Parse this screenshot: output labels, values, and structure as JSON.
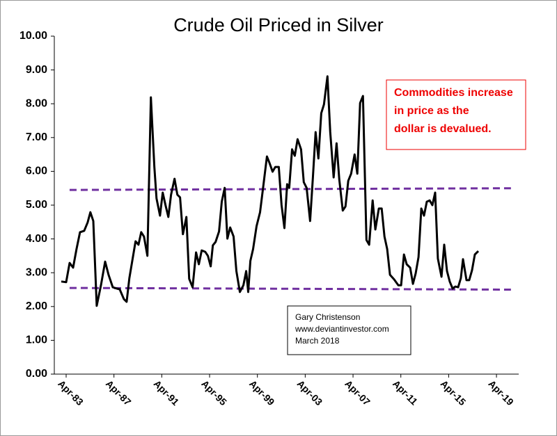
{
  "chart_data": {
    "type": "line",
    "title": "Crude Oil Priced in Silver",
    "annotation": [
      "Commodities increase",
      "in price as the",
      "dollar is devalued."
    ],
    "credit": [
      "Gary Christenson",
      "www.deviantinvestor.com",
      "March 2018"
    ],
    "xlim": [
      1982.26,
      2021.11
    ],
    "ylim": [
      0,
      10
    ],
    "xticks": [
      {
        "value": 1983.25,
        "label": "Apr-83"
      },
      {
        "value": 1987.25,
        "label": "Apr-87"
      },
      {
        "value": 1991.25,
        "label": "Apr-91"
      },
      {
        "value": 1995.25,
        "label": "Apr-95"
      },
      {
        "value": 1999.25,
        "label": "Apr-99"
      },
      {
        "value": 2003.25,
        "label": "Apr-03"
      },
      {
        "value": 2007.25,
        "label": "Apr-07"
      },
      {
        "value": 2011.25,
        "label": "Apr-11"
      },
      {
        "value": 2015.25,
        "label": "Apr-15"
      },
      {
        "value": 2019.25,
        "label": "Apr-19"
      }
    ],
    "yticks": [
      {
        "value": 0,
        "label": "0.00"
      },
      {
        "value": 1,
        "label": "1.00"
      },
      {
        "value": 2,
        "label": "2.00"
      },
      {
        "value": 3,
        "label": "3.00"
      },
      {
        "value": 4,
        "label": "4.00"
      },
      {
        "value": 5,
        "label": "5.00"
      },
      {
        "value": 6,
        "label": "6.00"
      },
      {
        "value": 7,
        "label": "7.00"
      },
      {
        "value": 8,
        "label": "8.00"
      },
      {
        "value": 9,
        "label": "9.00"
      },
      {
        "value": 10,
        "label": "10.00"
      }
    ],
    "color": "#000000",
    "x": [
      1982.84,
      1983.25,
      1983.54,
      1983.83,
      1984.12,
      1984.41,
      1984.76,
      1985.05,
      1985.28,
      1985.52,
      1985.81,
      1986.16,
      1986.51,
      1986.8,
      1987.15,
      1987.49,
      1987.73,
      1988.08,
      1988.31,
      1988.54,
      1989.06,
      1989.3,
      1989.53,
      1989.76,
      1990.05,
      1990.34,
      1990.63,
      1990.81,
      1991.1,
      1991.33,
      1991.56,
      1991.8,
      1992.03,
      1992.32,
      1992.55,
      1992.78,
      1993.02,
      1993.31,
      1993.54,
      1993.83,
      1994.12,
      1994.35,
      1994.59,
      1994.88,
      1995.11,
      1995.34,
      1995.52,
      1995.75,
      1996.04,
      1996.27,
      1996.51,
      1996.74,
      1996.97,
      1997.26,
      1997.49,
      1997.78,
      1998.08,
      1998.31,
      1998.48,
      1998.66,
      1998.89,
      1999.18,
      1999.47,
      1999.76,
      2000.05,
      2000.28,
      2000.52,
      2000.75,
      2001.04,
      2001.27,
      2001.51,
      2001.74,
      2001.91,
      2002.15,
      2002.38,
      2002.61,
      2002.9,
      2003.13,
      2003.37,
      2003.66,
      2003.89,
      2004.12,
      2004.35,
      2004.59,
      2004.82,
      2005.11,
      2005.34,
      2005.63,
      2005.87,
      2006.1,
      2006.39,
      2006.62,
      2006.85,
      2007.09,
      2007.38,
      2007.61,
      2007.84,
      2008.08,
      2008.37,
      2008.6,
      2008.89,
      2009.12,
      2009.41,
      2009.65,
      2009.88,
      2010.11,
      2010.34,
      2010.69,
      2011.04,
      2011.27,
      2011.51,
      2011.74,
      2012.03,
      2012.26,
      2012.49,
      2012.73,
      2012.96,
      2013.19,
      2013.42,
      2013.66,
      2013.89,
      2014.12,
      2014.35,
      2014.65,
      2014.88,
      2015.11,
      2015.34,
      2015.58,
      2015.81,
      2016.04,
      2016.27,
      2016.45,
      2016.74,
      2016.97,
      2017.2,
      2017.44,
      2017.73
    ],
    "values": [
      2.74,
      2.72,
      3.29,
      3.15,
      3.7,
      4.2,
      4.24,
      4.49,
      4.79,
      4.53,
      2.02,
      2.63,
      3.33,
      2.94,
      2.57,
      2.53,
      2.51,
      2.22,
      2.14,
      2.84,
      3.93,
      3.83,
      4.2,
      4.07,
      3.5,
      8.19,
      6.13,
      5.2,
      4.69,
      5.37,
      5.0,
      4.65,
      5.31,
      5.78,
      5.31,
      5.23,
      4.14,
      4.65,
      2.82,
      2.57,
      3.6,
      3.25,
      3.66,
      3.62,
      3.5,
      3.19,
      3.81,
      3.91,
      4.22,
      5.1,
      5.51,
      4.01,
      4.34,
      4.07,
      3.05,
      2.43,
      2.63,
      3.05,
      2.43,
      3.35,
      3.7,
      4.38,
      4.79,
      5.62,
      6.44,
      6.23,
      5.99,
      6.13,
      6.13,
      5.0,
      4.32,
      5.62,
      5.51,
      6.65,
      6.46,
      6.95,
      6.65,
      5.68,
      5.51,
      4.53,
      5.82,
      7.16,
      6.38,
      7.72,
      7.98,
      8.81,
      7.16,
      5.82,
      6.83,
      5.76,
      4.84,
      4.96,
      5.72,
      5.93,
      6.5,
      5.93,
      8.02,
      8.23,
      3.97,
      3.83,
      5.14,
      4.28,
      4.9,
      4.9,
      4.07,
      3.7,
      2.94,
      2.8,
      2.63,
      2.63,
      3.54,
      3.25,
      3.15,
      2.67,
      2.98,
      3.46,
      4.9,
      4.69,
      5.1,
      5.14,
      5.0,
      5.37,
      3.42,
      2.88,
      3.83,
      3.05,
      2.74,
      2.53,
      2.59,
      2.57,
      2.84,
      3.4,
      2.78,
      2.78,
      3.07,
      3.54,
      3.64
    ],
    "reference_lines": [
      {
        "color": "#7030a0",
        "x": [
          1983.54,
          2020.46
        ],
        "values": [
          5.45,
          5.5
        ]
      },
      {
        "color": "#7030a0",
        "x": [
          1983.54,
          2020.46
        ],
        "values": [
          2.55,
          2.5
        ]
      }
    ]
  }
}
